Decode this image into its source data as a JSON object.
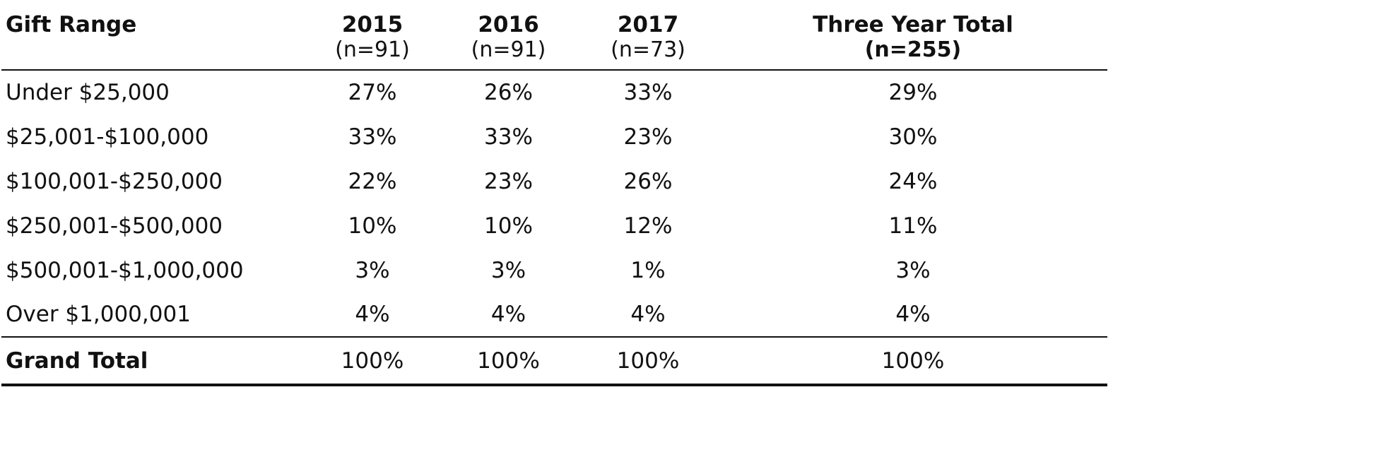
{
  "table": {
    "columns": [
      {
        "label": "Gift Range",
        "sub": ""
      },
      {
        "label": "2015",
        "sub": "(n=91)"
      },
      {
        "label": "2016",
        "sub": "(n=91)"
      },
      {
        "label": "2017",
        "sub": "(n=73)"
      },
      {
        "label": "Three Year Total",
        "sub": "(n=255)"
      }
    ],
    "rows": [
      {
        "label": "Under $25,000",
        "values": [
          "27%",
          "26%",
          "33%",
          "29%"
        ]
      },
      {
        "label": "$25,001-$100,000",
        "values": [
          "33%",
          "33%",
          "23%",
          "30%"
        ]
      },
      {
        "label": "$100,001-$250,000",
        "values": [
          "22%",
          "23%",
          "26%",
          "24%"
        ]
      },
      {
        "label": "$250,001-$500,000",
        "values": [
          "10%",
          "10%",
          "12%",
          "11%"
        ]
      },
      {
        "label": "$500,001-$1,000,000",
        "values": [
          "3%",
          "3%",
          "1%",
          "3%"
        ]
      },
      {
        "label": "Over $1,000,001",
        "values": [
          "4%",
          "4%",
          "4%",
          "4%"
        ]
      }
    ],
    "footer": {
      "label": "Grand Total",
      "values": [
        "100%",
        "100%",
        "100%",
        "100%"
      ]
    }
  },
  "colors": {
    "text": "#111111",
    "background": "#ffffff",
    "rule": "#111111"
  }
}
